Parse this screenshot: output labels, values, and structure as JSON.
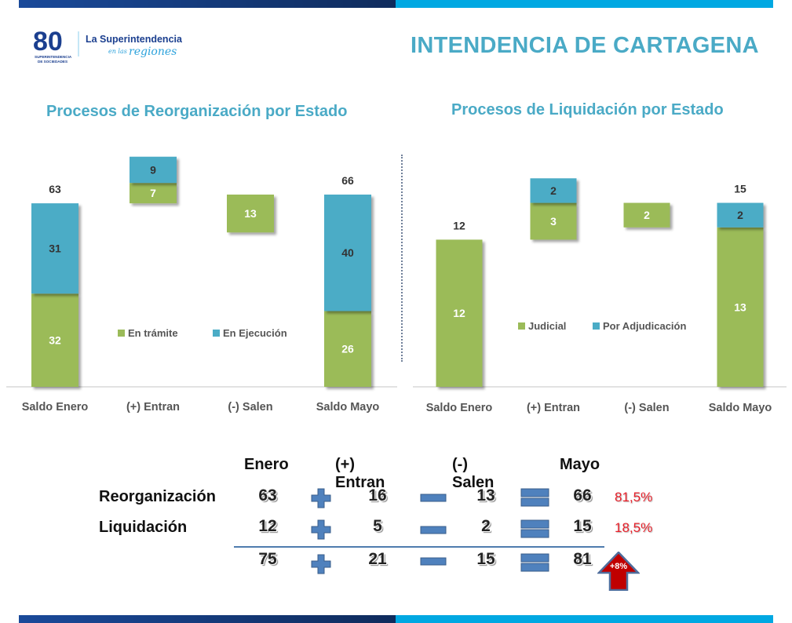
{
  "header": {
    "logo": {
      "number": "80",
      "org_line1": "SUPERINTENDENCIA",
      "org_line2": "DE SOCIEDADES",
      "tagline_main": "La Superintendencia",
      "tagline_sub1": "en las",
      "tagline_sub2": "regiones"
    },
    "title": "INTENDENCIA DE CARTAGENA"
  },
  "colors": {
    "green": "#9bbb59",
    "blue": "#4bacc6",
    "title_blue": "#4aaac6",
    "red": "#e8202a",
    "operator_blue": "#4f81bd",
    "arrow_red": "#c00000"
  },
  "chart_data": [
    {
      "type": "bar",
      "subtype": "stacked-waterfall",
      "title": "Procesos de Reorganización por Estado",
      "categories": [
        "Saldo Enero",
        "(+) Entran",
        "(-) Salen",
        "Saldo Mayo"
      ],
      "series": [
        {
          "name": "En trámite",
          "color": "#9bbb59",
          "values": [
            32,
            7,
            13,
            26
          ]
        },
        {
          "name": "En Ejecución",
          "color": "#4bacc6",
          "values": [
            31,
            9,
            0,
            40
          ]
        }
      ],
      "totals": [
        63,
        null,
        null,
        66
      ],
      "floating_bases": [
        0,
        63,
        66,
        0
      ],
      "legend": "center",
      "ylim": [
        0,
        80
      ],
      "grid": false
    },
    {
      "type": "bar",
      "subtype": "stacked-waterfall",
      "title": "Procesos de Liquidación por Estado",
      "categories": [
        "Saldo Enero",
        "(+) Entran",
        "(-) Salen",
        "Saldo Mayo"
      ],
      "series": [
        {
          "name": "Judicial",
          "color": "#9bbb59",
          "values": [
            12,
            3,
            2,
            13
          ]
        },
        {
          "name": "Por Adjudicación",
          "color": "#4bacc6",
          "values": [
            0,
            2,
            0,
            2
          ]
        }
      ],
      "totals": [
        12,
        null,
        null,
        15
      ],
      "floating_bases": [
        0,
        12,
        15,
        0
      ],
      "legend": "center",
      "ylim": [
        0,
        19
      ],
      "grid": false
    }
  ],
  "summary": {
    "headers": [
      "Enero",
      "(+) Entran",
      "(-) Salen",
      "Mayo"
    ],
    "rows": [
      {
        "label": "Reorganización",
        "enero": "63",
        "entran": "16",
        "salen": "13",
        "mayo": "66",
        "share": "81,5%"
      },
      {
        "label": "Liquidación",
        "enero": "12",
        "entran": "5",
        "salen": "2",
        "mayo": "15",
        "share": "18,5%"
      }
    ],
    "total": {
      "enero": "75",
      "entran": "21",
      "salen": "15",
      "mayo": "81"
    },
    "change_badge": "+8%"
  }
}
